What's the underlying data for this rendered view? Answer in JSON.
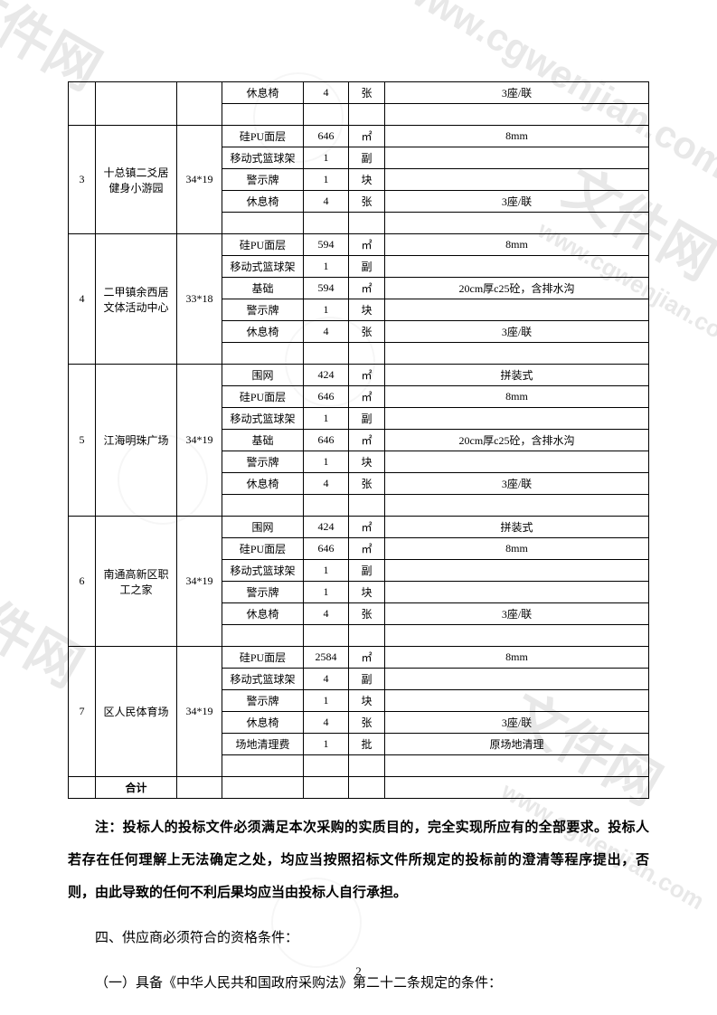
{
  "watermarks": {
    "text_cn": "文件网",
    "text_url": "www.cgwenjian.com"
  },
  "table": {
    "total_label": "合计",
    "groups": [
      {
        "idx": "",
        "name": "",
        "size": "",
        "rows": [
          {
            "item": "休息椅",
            "qty": "4",
            "unit": "张",
            "note": "3座/联"
          },
          {
            "item": "",
            "qty": "",
            "unit": "",
            "note": ""
          }
        ]
      },
      {
        "idx": "3",
        "name": "十总镇二爻居健身小游园",
        "size": "34*19",
        "rows": [
          {
            "item": "硅PU面层",
            "qty": "646",
            "unit": "㎡",
            "note": "8mm"
          },
          {
            "item": "移动式篮球架",
            "qty": "1",
            "unit": "副",
            "note": ""
          },
          {
            "item": "警示牌",
            "qty": "1",
            "unit": "块",
            "note": ""
          },
          {
            "item": "休息椅",
            "qty": "4",
            "unit": "张",
            "note": "3座/联"
          },
          {
            "item": "",
            "qty": "",
            "unit": "",
            "note": ""
          }
        ]
      },
      {
        "idx": "4",
        "name": "二甲镇余西居文体活动中心",
        "size": "33*18",
        "rows": [
          {
            "item": "硅PU面层",
            "qty": "594",
            "unit": "㎡",
            "note": "8mm"
          },
          {
            "item": "移动式篮球架",
            "qty": "1",
            "unit": "副",
            "note": ""
          },
          {
            "item": "基础",
            "qty": "594",
            "unit": "㎡",
            "note": "20cm厚c25砼，含排水沟"
          },
          {
            "item": "警示牌",
            "qty": "1",
            "unit": "块",
            "note": ""
          },
          {
            "item": "休息椅",
            "qty": "4",
            "unit": "张",
            "note": "3座/联"
          },
          {
            "item": "",
            "qty": "",
            "unit": "",
            "note": ""
          }
        ]
      },
      {
        "idx": "5",
        "name": "江海明珠广场",
        "size": "34*19",
        "rows": [
          {
            "item": "围网",
            "qty": "424",
            "unit": "㎡",
            "note": "拼装式"
          },
          {
            "item": "硅PU面层",
            "qty": "646",
            "unit": "㎡",
            "note": "8mm"
          },
          {
            "item": "移动式篮球架",
            "qty": "1",
            "unit": "副",
            "note": ""
          },
          {
            "item": "基础",
            "qty": "646",
            "unit": "㎡",
            "note": "20cm厚c25砼，含排水沟"
          },
          {
            "item": "警示牌",
            "qty": "1",
            "unit": "块",
            "note": ""
          },
          {
            "item": "休息椅",
            "qty": "4",
            "unit": "张",
            "note": "3座/联"
          },
          {
            "item": "",
            "qty": "",
            "unit": "",
            "note": ""
          }
        ]
      },
      {
        "idx": "6",
        "name": "南通高新区职工之家",
        "size": "34*19",
        "rows": [
          {
            "item": "围网",
            "qty": "424",
            "unit": "㎡",
            "note": "拼装式"
          },
          {
            "item": "硅PU面层",
            "qty": "646",
            "unit": "㎡",
            "note": "8mm"
          },
          {
            "item": "移动式篮球架",
            "qty": "1",
            "unit": "副",
            "note": ""
          },
          {
            "item": "警示牌",
            "qty": "1",
            "unit": "块",
            "note": ""
          },
          {
            "item": "休息椅",
            "qty": "4",
            "unit": "张",
            "note": "3座/联"
          },
          {
            "item": "",
            "qty": "",
            "unit": "",
            "note": ""
          }
        ]
      },
      {
        "idx": "7",
        "name": "区人民体育场",
        "size": "34*19",
        "rows": [
          {
            "item": "硅PU面层",
            "qty": "2584",
            "unit": "㎡",
            "note": "8mm"
          },
          {
            "item": "移动式篮球架",
            "qty": "4",
            "unit": "副",
            "note": ""
          },
          {
            "item": "警示牌",
            "qty": "1",
            "unit": "块",
            "note": ""
          },
          {
            "item": "休息椅",
            "qty": "4",
            "unit": "张",
            "note": "3座/联"
          },
          {
            "item": "场地清理费",
            "qty": "1",
            "unit": "批",
            "note": "原场地清理"
          },
          {
            "item": "",
            "qty": "",
            "unit": "",
            "note": ""
          }
        ]
      }
    ]
  },
  "paragraphs": {
    "p1": "注：投标人的投标文件必须满足本次采购的实质目的，完全实现所应有的全部要求。投标人若存在任何理解上无法确定之处，均应当按照招标文件所规定的投标前的澄清等程序提出，否则，由此导致的任何不利后果均应当由投标人自行承担。",
    "p2": "四、供应商必须符合的资格条件：",
    "p3": "（一）具备《中华人民共和国政府采购法》第二十二条规定的条件："
  },
  "pagenum": "2",
  "styles": {
    "bg": "#ffffff",
    "text_color": "#000000",
    "watermark_color": "#e8e8e8",
    "font_body": "SimSun",
    "font_size_table": 12,
    "font_size_para": 15,
    "line_height_para": 2.4
  }
}
